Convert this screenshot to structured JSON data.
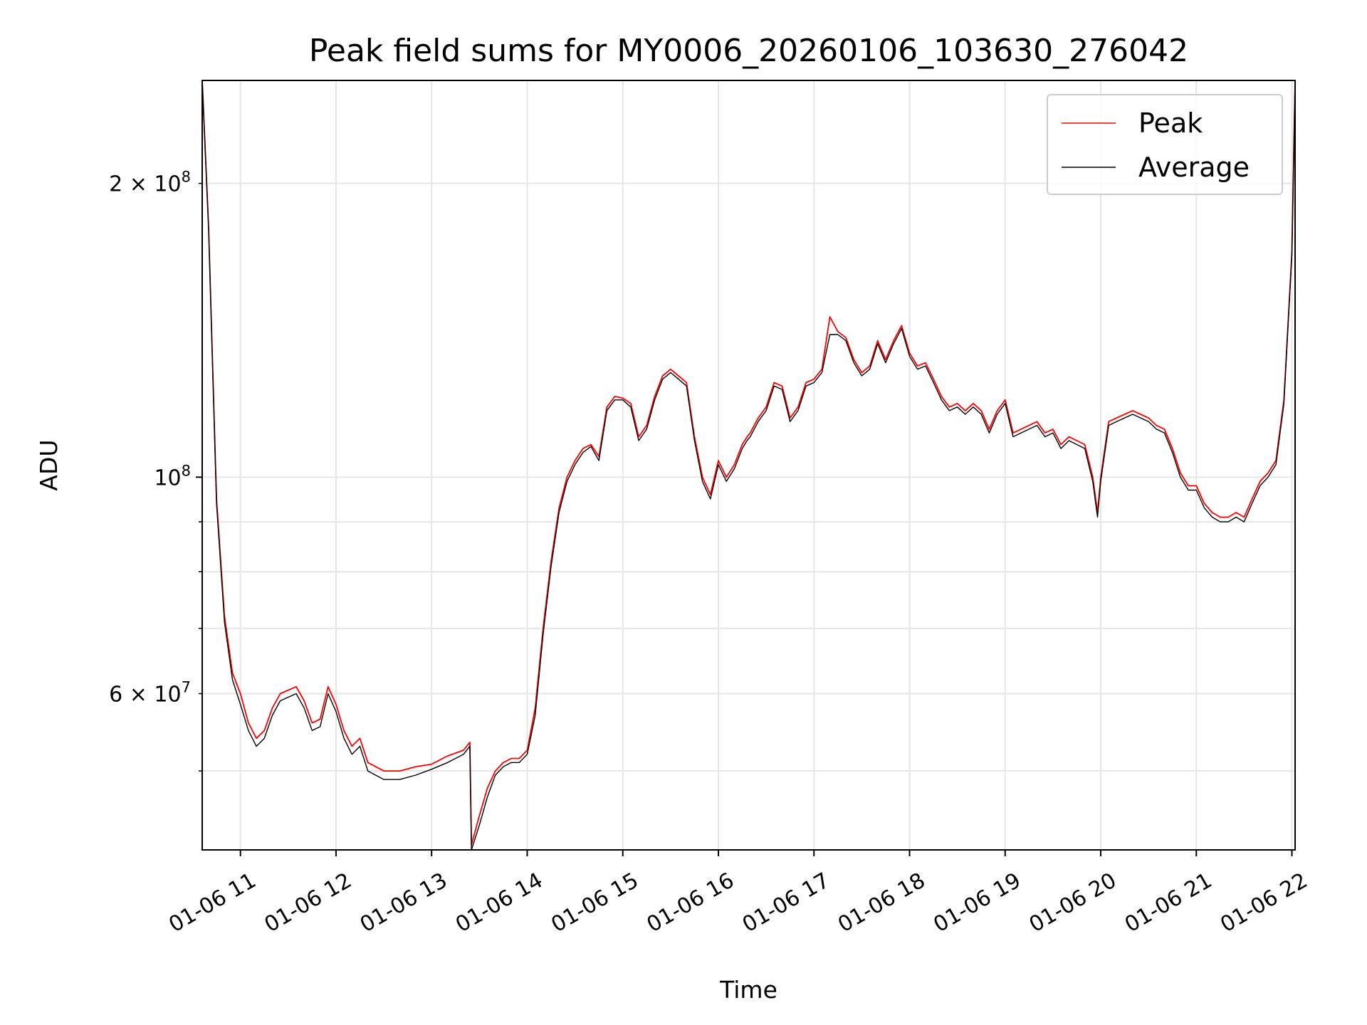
{
  "chart_data": {
    "type": "line",
    "title": "Peak field sums for MY0006_20260106_103630_276042",
    "xlabel": "Time",
    "ylabel": "ADU",
    "yscale": "log",
    "ylim": [
      41500000,
      255000000
    ],
    "xlim": [
      "01-06 10:36",
      "01-06 22:02"
    ],
    "grid": true,
    "legend_position": "top-right",
    "x_tick_labels": [
      "01-06 11",
      "01-06 12",
      "01-06 13",
      "01-06 14",
      "01-06 15",
      "01-06 16",
      "01-06 17",
      "01-06 18",
      "01-06 19",
      "01-06 20",
      "01-06 21",
      "01-06 22"
    ],
    "y_tick_labels": [
      {
        "value": 60000000,
        "base": "6",
        "exp": "7"
      },
      {
        "value": 100000000,
        "base": "10",
        "exp": "8"
      },
      {
        "value": 200000000,
        "base": "2",
        "exp": "8"
      }
    ],
    "x": [
      "10:36",
      "10:40",
      "10:45",
      "10:50",
      "10:55",
      "11:00",
      "11:05",
      "11:10",
      "11:15",
      "11:20",
      "11:25",
      "11:30",
      "11:35",
      "11:40",
      "11:45",
      "11:50",
      "11:55",
      "12:00",
      "12:05",
      "12:10",
      "12:15",
      "12:20",
      "12:30",
      "12:40",
      "12:50",
      "13:00",
      "13:10",
      "13:20",
      "13:24",
      "13:25",
      "13:30",
      "13:35",
      "13:40",
      "13:45",
      "13:50",
      "13:55",
      "14:00",
      "14:05",
      "14:10",
      "14:15",
      "14:20",
      "14:25",
      "14:30",
      "14:35",
      "14:40",
      "14:45",
      "14:50",
      "14:55",
      "15:00",
      "15:05",
      "15:10",
      "15:15",
      "15:20",
      "15:25",
      "15:30",
      "15:35",
      "15:40",
      "15:45",
      "15:50",
      "15:55",
      "16:00",
      "16:05",
      "16:10",
      "16:15",
      "16:18",
      "16:20",
      "16:25",
      "16:30",
      "16:35",
      "16:40",
      "16:45",
      "16:50",
      "16:55",
      "17:00",
      "17:05",
      "17:10",
      "17:15",
      "17:20",
      "17:25",
      "17:30",
      "17:35",
      "17:40",
      "17:45",
      "17:50",
      "17:55",
      "18:00",
      "18:05",
      "18:10",
      "18:15",
      "18:20",
      "18:25",
      "18:30",
      "18:35",
      "18:40",
      "18:45",
      "18:50",
      "18:55",
      "19:00",
      "19:05",
      "19:10",
      "19:15",
      "19:20",
      "19:25",
      "19:30",
      "19:35",
      "19:40",
      "19:45",
      "19:50",
      "19:55",
      "19:58",
      "20:00",
      "20:05",
      "20:10",
      "20:15",
      "20:20",
      "20:25",
      "20:30",
      "20:35",
      "20:40",
      "20:45",
      "20:50",
      "20:55",
      "21:00",
      "21:05",
      "21:10",
      "21:15",
      "21:20",
      "21:25",
      "21:30",
      "21:35",
      "21:40",
      "21:45",
      "21:50",
      "21:55",
      "22:00",
      "22:02"
    ],
    "series": [
      {
        "name": "Peak",
        "color": "#ff0000",
        "values": [
          255000000,
          180000000,
          95000000,
          72000000,
          63000000,
          60000000,
          56000000,
          54000000,
          55000000,
          58000000,
          60000000,
          60500000,
          61000000,
          59000000,
          56000000,
          56500000,
          61000000,
          58500000,
          55000000,
          53000000,
          54000000,
          51000000,
          50000000,
          50000000,
          50500000,
          50800000,
          51800000,
          52500000,
          53500000,
          42000000,
          45000000,
          48000000,
          50000000,
          51000000,
          51500000,
          51500000,
          52500000,
          58000000,
          70000000,
          82000000,
          93000000,
          100000000,
          104000000,
          107000000,
          108000000,
          105000000,
          118000000,
          121000000,
          120500000,
          119000000,
          110000000,
          113000000,
          121000000,
          127000000,
          129000000,
          127000000,
          125000000,
          110000000,
          100000000,
          96000000,
          104000000,
          100000000,
          103000000,
          108000000,
          110000000,
          111000000,
          115000000,
          118000000,
          125000000,
          124000000,
          115000000,
          118000000,
          125000000,
          126000000,
          129000000,
          146000000,
          141000000,
          139000000,
          132000000,
          128000000,
          130000000,
          138000000,
          132000000,
          138000000,
          143000000,
          134000000,
          130000000,
          131000000,
          126000000,
          121000000,
          118000000,
          119000000,
          117000000,
          119000000,
          117000000,
          112000000,
          117000000,
          120000000,
          111000000,
          112000000,
          113000000,
          114000000,
          111000000,
          112000000,
          108000000,
          110000000,
          109000000,
          108000000,
          100000000,
          92000000,
          100000000,
          114000000,
          115000000,
          116000000,
          117000000,
          116000000,
          115000000,
          113000000,
          112000000,
          107000000,
          101000000,
          98000000,
          98000000,
          94000000,
          92000000,
          91000000,
          91000000,
          92000000,
          91000000,
          95000000,
          99000000,
          101000000,
          104000000,
          120000000,
          170000000,
          255000000
        ]
      },
      {
        "name": "Average",
        "color": "#000000",
        "values": [
          255000000,
          180000000,
          94000000,
          71000000,
          62000000,
          58500000,
          55000000,
          53000000,
          54000000,
          57000000,
          59000000,
          59500000,
          60000000,
          58000000,
          55000000,
          55500000,
          60000000,
          57500000,
          54000000,
          52000000,
          53000000,
          50000000,
          49000000,
          49000000,
          49500000,
          50200000,
          51000000,
          52000000,
          53000000,
          41500000,
          44000000,
          47000000,
          49500000,
          50500000,
          51000000,
          51000000,
          52000000,
          57000000,
          69000000,
          81000000,
          92000000,
          99000000,
          103000000,
          106000000,
          107500000,
          104000000,
          117000000,
          120000000,
          120000000,
          118000000,
          109000000,
          112000000,
          120000000,
          126000000,
          128000000,
          126000000,
          124000000,
          109000000,
          99000000,
          95000000,
          103000000,
          99000000,
          102000000,
          107000000,
          109000000,
          110000000,
          114000000,
          117000000,
          124000000,
          123000000,
          114000000,
          117000000,
          124000000,
          125000000,
          128000000,
          140000000,
          140000000,
          138000000,
          131000000,
          127000000,
          129000000,
          137000000,
          131000000,
          137000000,
          142000000,
          133000000,
          129000000,
          130000000,
          125000000,
          120000000,
          117000000,
          118000000,
          116000000,
          118000000,
          116000000,
          111000000,
          116000000,
          119000000,
          110000000,
          111000000,
          112000000,
          113000000,
          110000000,
          111000000,
          107000000,
          109000000,
          108000000,
          107000000,
          99000000,
          91000000,
          99000000,
          113000000,
          114000000,
          115000000,
          116000000,
          115000000,
          114000000,
          112000000,
          111000000,
          106000000,
          100000000,
          97000000,
          97000000,
          93000000,
          91000000,
          90000000,
          90000000,
          91000000,
          90000000,
          94000000,
          98000000,
          100000000,
          103000000,
          119000000,
          169000000,
          255000000
        ]
      }
    ]
  }
}
